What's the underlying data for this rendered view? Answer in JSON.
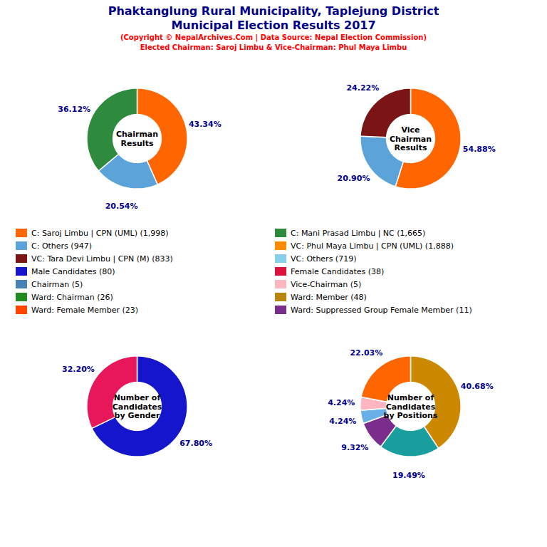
{
  "title": "Phaktanglung Rural Municipality, Taplejung District\nMunicipal Election Results 2017",
  "subtitle": "(Copyright © NepalArchives.Com | Data Source: Nepal Election Commission)\nElected Chairman: Saroj Limbu & Vice-Chairman: Phul Maya Limbu",
  "legend_entries": [
    {
      "name": "C: Saroj Limbu | CPN (UML) (1,998)",
      "color": "#FF6600"
    },
    {
      "name": "C: Others (947)",
      "color": "#5BA3D9"
    },
    {
      "name": "VC: Tara Devi Limbu | CPN (M) (833)",
      "color": "#7B1515"
    },
    {
      "name": "Male Candidates (80)",
      "color": "#1515CC"
    },
    {
      "name": "Chairman (5)",
      "color": "#4682B4"
    },
    {
      "name": "Ward: Chairman (26)",
      "color": "#228B22"
    },
    {
      "name": "Ward: Female Member (23)",
      "color": "#FF4500"
    },
    {
      "name": "C: Mani Prasad Limbu | NC (1,665)",
      "color": "#2E8B3E"
    },
    {
      "name": "VC: Phul Maya Limbu | CPN (UML) (1,888)",
      "color": "#FF8C00"
    },
    {
      "name": "VC: Others (719)",
      "color": "#87CEEB"
    },
    {
      "name": "Female Candidates (38)",
      "color": "#DC143C"
    },
    {
      "name": "Vice-Chairman (5)",
      "color": "#FFB6C1"
    },
    {
      "name": "Ward: Member (48)",
      "color": "#B8860B"
    },
    {
      "name": "Ward: Suppressed Group Female Member (11)",
      "color": "#7B2D8B"
    }
  ],
  "chart_data": [
    {
      "type": "pie",
      "title": "Chairman\nResults",
      "values": [
        43.34,
        20.54,
        36.12
      ],
      "value_labels": [
        "43.34%",
        "20.54%",
        "36.12%"
      ],
      "colors": [
        "#FF6600",
        "#5BA3D9",
        "#2E8B3E"
      ],
      "data_labels": true
    },
    {
      "type": "pie",
      "title": "Vice\nChairman\nResults",
      "values": [
        54.88,
        20.9,
        24.22
      ],
      "value_labels": [
        "54.88%",
        "20.90%",
        "24.22%"
      ],
      "colors": [
        "#FF6600",
        "#5BA3D9",
        "#7B1515"
      ],
      "data_labels": true
    },
    {
      "type": "pie",
      "title": "Number of\nCandidates\nby Gender",
      "values": [
        67.8,
        32.2
      ],
      "value_labels": [
        "67.80%",
        "32.20%"
      ],
      "colors": [
        "#1515CC",
        "#E8175A"
      ],
      "data_labels": true
    },
    {
      "type": "pie",
      "title": "Number of\nCandidates\nby Positions",
      "values": [
        40.68,
        19.49,
        9.32,
        4.24,
        4.24,
        22.03
      ],
      "value_labels": [
        "40.68%",
        "19.49%",
        "9.32%",
        "4.24%",
        "4.24%",
        "22.03%"
      ],
      "colors": [
        "#CC8800",
        "#1A9E9E",
        "#7B2D8B",
        "#6AAFE6",
        "#FFB6C1",
        "#FF6600"
      ],
      "data_labels": true
    }
  ]
}
